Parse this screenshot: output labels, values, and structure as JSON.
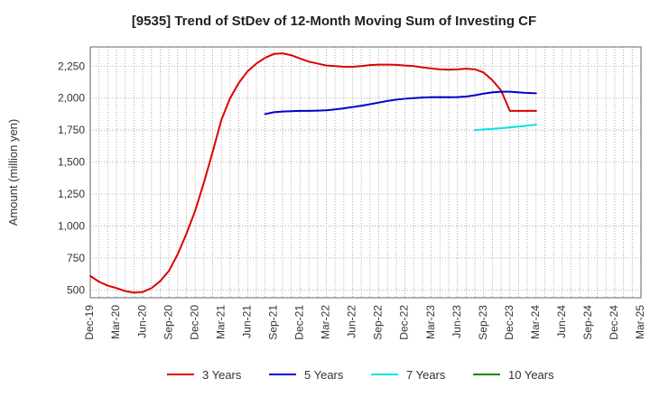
{
  "chart_data": {
    "type": "line",
    "title": "[9535]  Trend of StDev of 12-Month Moving Sum of Investing CF",
    "ylabel": "Amount (million yen)",
    "xlabel": "",
    "x_ticks": [
      "Dec-19",
      "Mar-20",
      "Jun-20",
      "Sep-20",
      "Dec-20",
      "Mar-21",
      "Jun-21",
      "Sep-21",
      "Dec-21",
      "Mar-22",
      "Jun-22",
      "Sep-22",
      "Dec-22",
      "Mar-23",
      "Jun-23",
      "Sep-23",
      "Dec-23",
      "Mar-24",
      "Jun-24",
      "Sep-24",
      "Dec-24",
      "Mar-25"
    ],
    "y_ticks": [
      "500",
      "750",
      "1,000",
      "1,250",
      "1,500",
      "1,750",
      "2,000",
      "2,250"
    ],
    "ylim": [
      440,
      2400
    ],
    "grid": true,
    "legend_position": "bottom",
    "series": [
      {
        "name": "3 Years",
        "color": "#dd0000",
        "x": [
          "Dec-19",
          "Jan-20",
          "Feb-20",
          "Mar-20",
          "Apr-20",
          "May-20",
          "Jun-20",
          "Jul-20",
          "Aug-20",
          "Sep-20",
          "Oct-20",
          "Nov-20",
          "Dec-20",
          "Jan-21",
          "Feb-21",
          "Mar-21",
          "Apr-21",
          "May-21",
          "Jun-21",
          "Jul-21",
          "Aug-21",
          "Sep-21",
          "Oct-21",
          "Nov-21",
          "Dec-21",
          "Jan-22",
          "Feb-22",
          "Mar-22",
          "Apr-22",
          "May-22",
          "Jun-22",
          "Jul-22",
          "Aug-22",
          "Sep-22",
          "Oct-22",
          "Nov-22",
          "Dec-22",
          "Jan-23",
          "Feb-23",
          "Mar-23",
          "Apr-23",
          "May-23",
          "Jun-23",
          "Jul-23",
          "Aug-23",
          "Sep-23",
          "Oct-23",
          "Nov-23",
          "Dec-23",
          "Jan-24",
          "Feb-24",
          "Mar-24"
        ],
        "values": [
          610,
          565,
          535,
          515,
          492,
          480,
          485,
          515,
          570,
          650,
          780,
          940,
          1120,
          1340,
          1580,
          1830,
          2000,
          2120,
          2210,
          2270,
          2315,
          2345,
          2350,
          2335,
          2310,
          2285,
          2270,
          2255,
          2250,
          2245,
          2245,
          2250,
          2258,
          2262,
          2262,
          2260,
          2255,
          2250,
          2240,
          2232,
          2225,
          2222,
          2225,
          2230,
          2225,
          2200,
          2140,
          2060,
          1900,
          1900,
          1900,
          1900
        ]
      },
      {
        "name": "5 Years",
        "color": "#0000cc",
        "x": [
          "Aug-21",
          "Sep-21",
          "Oct-21",
          "Nov-21",
          "Dec-21",
          "Jan-22",
          "Feb-22",
          "Mar-22",
          "Apr-22",
          "May-22",
          "Jun-22",
          "Jul-22",
          "Aug-22",
          "Sep-22",
          "Oct-22",
          "Nov-22",
          "Dec-22",
          "Jan-23",
          "Feb-23",
          "Mar-23",
          "Apr-23",
          "May-23",
          "Jun-23",
          "Jul-23",
          "Aug-23",
          "Sep-23",
          "Oct-23",
          "Nov-23",
          "Dec-23",
          "Jan-24",
          "Feb-24",
          "Mar-24"
        ],
        "values": [
          1875,
          1890,
          1895,
          1898,
          1900,
          1900,
          1902,
          1905,
          1912,
          1920,
          1930,
          1940,
          1952,
          1965,
          1978,
          1988,
          1995,
          2000,
          2004,
          2007,
          2008,
          2007,
          2008,
          2012,
          2022,
          2035,
          2045,
          2050,
          2050,
          2045,
          2040,
          2038
        ]
      },
      {
        "name": "7 Years",
        "color": "#00e5e5",
        "x": [
          "Aug-23",
          "Sep-23",
          "Oct-23",
          "Nov-23",
          "Dec-23",
          "Jan-24",
          "Feb-24",
          "Mar-24"
        ],
        "values": [
          1750,
          1755,
          1760,
          1765,
          1772,
          1778,
          1785,
          1793
        ]
      },
      {
        "name": "10 Years",
        "color": "#008800",
        "x": [],
        "values": []
      }
    ]
  }
}
